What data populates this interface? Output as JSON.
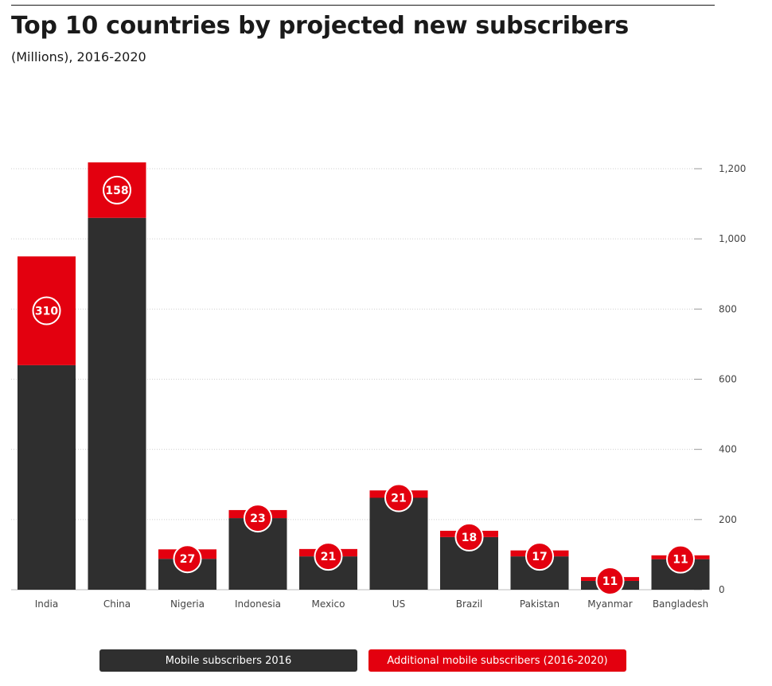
{
  "header": {
    "title": "Top 10 countries by projected new subscribers",
    "subtitle": "(Millions), 2016-2020"
  },
  "colors": {
    "base": "#2f2f2f",
    "additional": "#e3000f",
    "grid": "#cfcfcf",
    "text": "#1a1a1a"
  },
  "chart_data": {
    "type": "bar",
    "stacked": true,
    "title": "Top 10 countries by projected new subscribers",
    "subtitle": "(Millions), 2016-2020",
    "categories": [
      "India",
      "China",
      "Nigeria",
      "Indonesia",
      "Mexico",
      "US",
      "Brazil",
      "Pakistan",
      "Myanmar",
      "Bangladesh"
    ],
    "series": [
      {
        "name": "Mobile subscribers 2016",
        "color": "#2f2f2f",
        "values": [
          640,
          1060,
          88,
          204,
          95,
          262,
          150,
          95,
          25,
          87
        ]
      },
      {
        "name": "Additional mobile subscribers (2016-2020)",
        "color": "#e3000f",
        "values": [
          310,
          158,
          27,
          23,
          21,
          21,
          18,
          17,
          11,
          11
        ],
        "labels": [
          "310",
          "158",
          "27",
          "23",
          "21",
          "21",
          "18",
          "17",
          "11",
          "11"
        ]
      }
    ],
    "yticks": [
      0,
      200,
      400,
      600,
      800,
      1000,
      1200
    ],
    "ytick_labels": [
      "0",
      "200",
      "400",
      "600",
      "800",
      "1,000",
      "1,200"
    ],
    "ylim": [
      0,
      1200
    ],
    "y_axis_side": "right",
    "grid": true,
    "legend_position": "bottom"
  }
}
